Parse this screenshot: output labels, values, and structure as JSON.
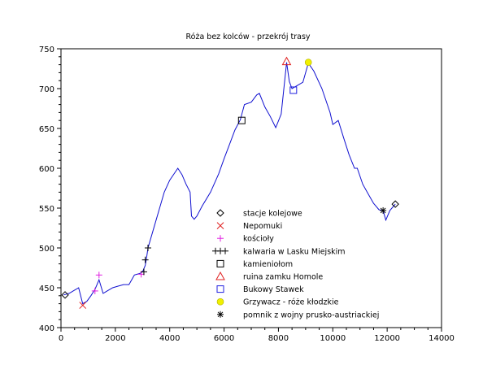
{
  "chart_data": {
    "type": "line",
    "title": "Róża bez kolców - przekrój trasy",
    "xlabel": "",
    "ylabel": "",
    "xlim": [
      0,
      14000
    ],
    "ylim": [
      400,
      750
    ],
    "grid": false,
    "x_ticks": [
      0,
      2000,
      4000,
      6000,
      8000,
      10000,
      12000,
      14000
    ],
    "x_tick_labels": [
      "0",
      "2000",
      "4000",
      "6000",
      "8000",
      "10000",
      "12000",
      "14000"
    ],
    "y_ticks": [
      400,
      450,
      500,
      550,
      600,
      650,
      700,
      750
    ],
    "y_tick_labels": [
      "400",
      "450",
      "500",
      "550",
      "600",
      "650",
      "700",
      "750"
    ],
    "legend_position": "center-right",
    "profile": {
      "color": "#1010d0",
      "points": [
        [
          100,
          441
        ],
        [
          300,
          443
        ],
        [
          500,
          447
        ],
        [
          650,
          450
        ],
        [
          800,
          430
        ],
        [
          950,
          433
        ],
        [
          1100,
          440
        ],
        [
          1250,
          448
        ],
        [
          1400,
          460
        ],
        [
          1550,
          443
        ],
        [
          1700,
          446
        ],
        [
          1900,
          450
        ],
        [
          2100,
          452
        ],
        [
          2300,
          454
        ],
        [
          2500,
          454
        ],
        [
          2700,
          466
        ],
        [
          2900,
          468
        ],
        [
          3000,
          470
        ],
        [
          3100,
          478
        ],
        [
          3150,
          488
        ],
        [
          3200,
          500
        ],
        [
          3500,
          535
        ],
        [
          3800,
          570
        ],
        [
          4000,
          585
        ],
        [
          4200,
          595
        ],
        [
          4300,
          600
        ],
        [
          4450,
          592
        ],
        [
          4600,
          580
        ],
        [
          4750,
          570
        ],
        [
          4800,
          540
        ],
        [
          4900,
          536
        ],
        [
          5000,
          540
        ],
        [
          5200,
          553
        ],
        [
          5500,
          570
        ],
        [
          5800,
          593
        ],
        [
          6000,
          612
        ],
        [
          6200,
          630
        ],
        [
          6400,
          648
        ],
        [
          6600,
          661
        ],
        [
          6750,
          680
        ],
        [
          7000,
          683
        ],
        [
          7200,
          692
        ],
        [
          7300,
          694
        ],
        [
          7500,
          677
        ],
        [
          7700,
          665
        ],
        [
          7900,
          651
        ],
        [
          8100,
          668
        ],
        [
          8300,
          733
        ],
        [
          8400,
          709
        ],
        [
          8500,
          700
        ],
        [
          8700,
          704
        ],
        [
          8900,
          708
        ],
        [
          9100,
          732
        ],
        [
          9300,
          722
        ],
        [
          9600,
          700
        ],
        [
          9900,
          670
        ],
        [
          10000,
          655
        ],
        [
          10200,
          660
        ],
        [
          10400,
          638
        ],
        [
          10600,
          617
        ],
        [
          10800,
          600
        ],
        [
          10900,
          600
        ],
        [
          11100,
          580
        ],
        [
          11300,
          568
        ],
        [
          11500,
          556
        ],
        [
          11700,
          548
        ],
        [
          11850,
          547
        ],
        [
          11950,
          535
        ],
        [
          12100,
          547
        ],
        [
          12300,
          555
        ]
      ]
    },
    "series": [
      {
        "name": "stacje kolejowe",
        "marker": "diamond",
        "color": "#000000",
        "points": [
          [
            150,
            441
          ],
          [
            12300,
            555
          ]
        ]
      },
      {
        "name": "Nepomuki",
        "marker": "x",
        "color": "#e02020",
        "points": [
          [
            800,
            428
          ]
        ]
      },
      {
        "name": "kościoły",
        "marker": "plus",
        "color": "#e020e0",
        "points": [
          [
            1250,
            446
          ],
          [
            1400,
            466
          ],
          [
            2950,
            467
          ]
        ]
      },
      {
        "name": "kalwaria w Lasku Miejskim",
        "marker": "plus",
        "color": "#000000",
        "points": [
          [
            3050,
            470
          ],
          [
            3100,
            485
          ],
          [
            3200,
            500
          ]
        ]
      },
      {
        "name": "kamieniołom",
        "marker": "square",
        "color": "#000000",
        "points": [
          [
            6650,
            660
          ]
        ]
      },
      {
        "name": "ruina zamku Homole",
        "marker": "triangle",
        "color": "#e02020",
        "points": [
          [
            8300,
            734
          ]
        ]
      },
      {
        "name": "Bukowy Stawek",
        "marker": "square",
        "color": "#2020e0",
        "points": [
          [
            8550,
            698
          ]
        ]
      },
      {
        "name": "Grzywacz - róże kłodzkie",
        "marker": "circle",
        "color": "#f0f000",
        "points": [
          [
            9100,
            733
          ]
        ]
      },
      {
        "name": "pomnik z wojny prusko-austriackiej",
        "marker": "asterisk",
        "color": "#000000",
        "points": [
          [
            11850,
            547
          ]
        ]
      }
    ]
  }
}
